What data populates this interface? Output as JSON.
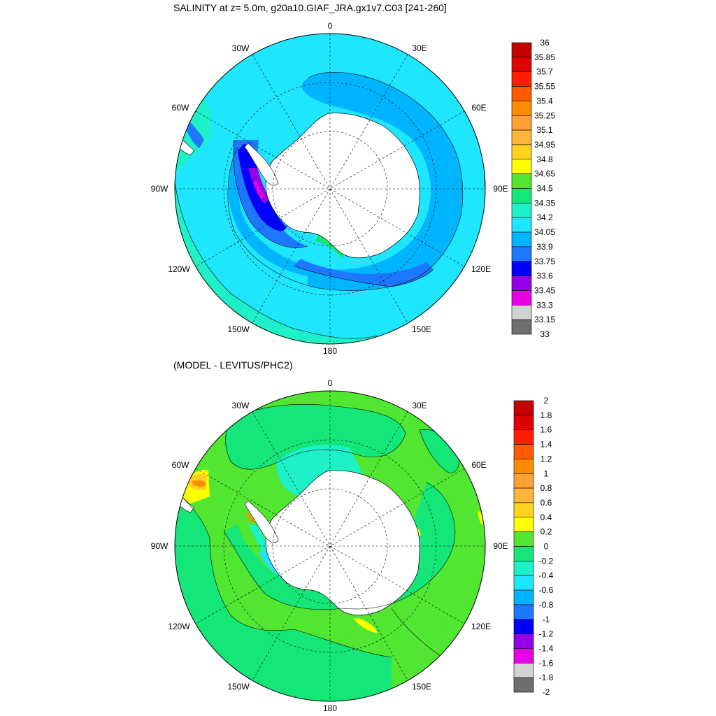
{
  "maps": [
    {
      "title": "SALINITY at z=   5.0m, g20a10.GIAF_JRA.gx1v7.C03 [241-260]",
      "lon_labels": [
        "0",
        "30E",
        "60E",
        "90E",
        "120E",
        "150E",
        "180",
        "150W",
        "120W",
        "90W",
        "60W",
        "30W"
      ],
      "colorbar": {
        "labels": [
          "36",
          "35.85",
          "35.7",
          "35.55",
          "35.4",
          "35.25",
          "35.1",
          "34.95",
          "34.8",
          "34.65",
          "34.5",
          "34.35",
          "34.2",
          "34.05",
          "33.9",
          "33.75",
          "33.6",
          "33.45",
          "33.3",
          "33.15",
          "33"
        ],
        "colors": [
          "#c40000",
          "#e00000",
          "#ff1e00",
          "#ff5a00",
          "#ff8c00",
          "#ffa032",
          "#ffb43c",
          "#ffd21e",
          "#ffff00",
          "#50e632",
          "#14e678",
          "#1ef0c8",
          "#1ee6ff",
          "#00b4ff",
          "#1e78ff",
          "#0000ff",
          "#9600e6",
          "#e600e6",
          "#d2d2d2",
          "#6e6e6e"
        ]
      }
    },
    {
      "title": "(MODEL - LEVITUS/PHC2)",
      "lon_labels": [
        "0",
        "30E",
        "60E",
        "90E",
        "120E",
        "150E",
        "180",
        "150W",
        "120W",
        "90W",
        "60W",
        "30W"
      ],
      "colorbar": {
        "labels": [
          "2",
          "1.8",
          "1.6",
          "1.4",
          "1.2",
          "1",
          "0.8",
          "0.6",
          "0.4",
          "0.2",
          "0",
          "-0.2",
          "-0.4",
          "-0.6",
          "-0.8",
          "-1",
          "-1.2",
          "-1.4",
          "-1.6",
          "-1.8",
          "-2"
        ],
        "colors": [
          "#c40000",
          "#e00000",
          "#ff1e00",
          "#ff5a00",
          "#ff8c00",
          "#ffa032",
          "#ffb43c",
          "#ffd21e",
          "#ffff00",
          "#50e632",
          "#14e678",
          "#1ef0c8",
          "#1ee6ff",
          "#00b4ff",
          "#1e78ff",
          "#0000ff",
          "#9600e6",
          "#e600e6",
          "#d2d2d2",
          "#6e6e6e"
        ]
      }
    }
  ]
}
